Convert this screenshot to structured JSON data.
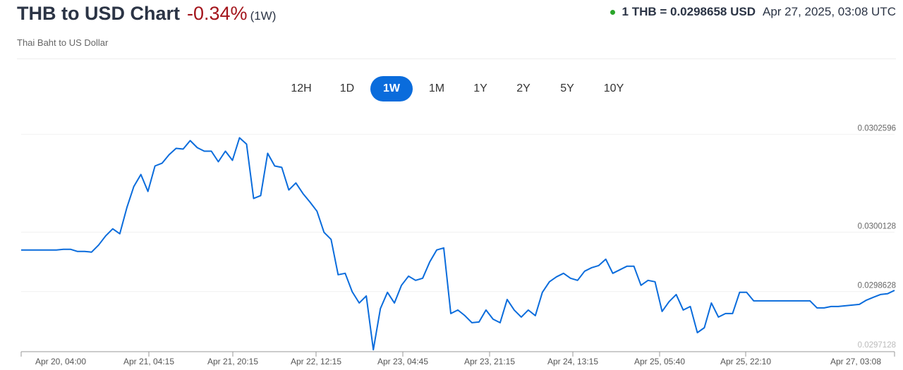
{
  "header": {
    "title": "THB to USD Chart",
    "change": "-0.34%",
    "period": "(1W)",
    "subtitle": "Thai Baht to US Dollar",
    "rate": "1 THB = 0.0298658 USD",
    "timestamp": "Apr 27, 2025, 03:08 UTC",
    "status_icon": "green-dot-icon"
  },
  "ranges": {
    "items": [
      "12H",
      "1D",
      "1W",
      "1M",
      "1Y",
      "2Y",
      "5Y",
      "10Y"
    ],
    "active": "1W"
  },
  "colors": {
    "line": "#0a6cdc",
    "negative": "#a3141b",
    "active_button": "#0a6cdc",
    "status": "#2aa52a"
  },
  "chart_data": {
    "type": "line",
    "title": "",
    "xlabel": "",
    "ylabel": "",
    "x_range": [
      "Apr 20, 04:00",
      "Apr 27, 03:08"
    ],
    "x_spacing": "evenly spaced between x_range endpoints",
    "ylim": [
      0.0297128,
      0.0302596
    ],
    "y_ticks": [
      "0.0302596",
      "0.0300128",
      "0.0298628",
      "0.0297128"
    ],
    "y_tick_values": [
      0.0302596,
      0.0300128,
      0.0298628,
      0.0297128
    ],
    "x_ticks": [
      "Apr 20, 04:00",
      "Apr 21, 04:15",
      "Apr 21, 20:15",
      "Apr 22, 12:15",
      "Apr 23, 04:45",
      "Apr 23, 21:15",
      "Apr 24, 13:15",
      "Apr 25, 05:40",
      "Apr 25, 22:10",
      "Apr 27, 03:08"
    ],
    "grid": true,
    "legend": "none",
    "series": [
      {
        "values": [
          0.0299677,
          0.0299677,
          0.0299677,
          0.0299677,
          0.0299677,
          0.0299677,
          0.0299695,
          0.0299695,
          0.0299641,
          0.0299641,
          0.0299624,
          0.0299802,
          0.0300033,
          0.0300212,
          0.0300087,
          0.0300746,
          0.0301281,
          0.0301584,
          0.0301156,
          0.0301798,
          0.0301869,
          0.0302083,
          0.0302244,
          0.0302226,
          0.030244,
          0.0302262,
          0.0302172,
          0.0302172,
          0.0301905,
          0.0302172,
          0.0301941,
          0.0302511,
          0.0302351,
          0.0300978,
          0.030105,
          0.0302119,
          0.0301798,
          0.0301763,
          0.0301192,
          0.030137,
          0.0301103,
          0.0300889,
          0.0300657,
          0.0300123,
          0.0299944,
          0.0299053,
          0.0299089,
          0.0298625,
          0.029834,
          0.0298518,
          0.029716,
          0.0298198,
          0.0298608,
          0.029834,
          0.0298786,
          0.0299017,
          0.0298911,
          0.0298964,
          0.0299374,
          0.0299677,
          0.029973,
          0.0298073,
          0.0298162,
          0.0298019,
          0.0297841,
          0.0297859,
          0.0298162,
          0.029793,
          0.0297841,
          0.0298429,
          0.0298162,
          0.0297984,
          0.0298162,
          0.0298019,
          0.0298608,
          0.0298875,
          0.0299,
          0.0299089,
          0.0298964,
          0.0298911,
          0.0299142,
          0.0299231,
          0.0299285,
          0.0299445,
          0.0299089,
          0.0299178,
          0.0299267,
          0.0299267,
          0.0298786,
          0.0298911,
          0.0298875,
          0.0298126,
          0.0298376,
          0.0298554,
          0.0298162,
          0.0298251,
          0.0297591,
          0.0297716,
          0.029834,
          0.0297984,
          0.0298073,
          0.0298073,
          0.0298608,
          0.0298608,
          0.0298394,
          0.0298394,
          0.0298394,
          0.0298394,
          0.0298394,
          0.0298394,
          0.0298394,
          0.0298394,
          0.0298394,
          0.0298215,
          0.0298215,
          0.0298251,
          0.0298251,
          0.0298269,
          0.0298287,
          0.0298304,
          0.0298411,
          0.0298483,
          0.0298554,
          0.0298572,
          0.0298658
        ]
      }
    ]
  }
}
